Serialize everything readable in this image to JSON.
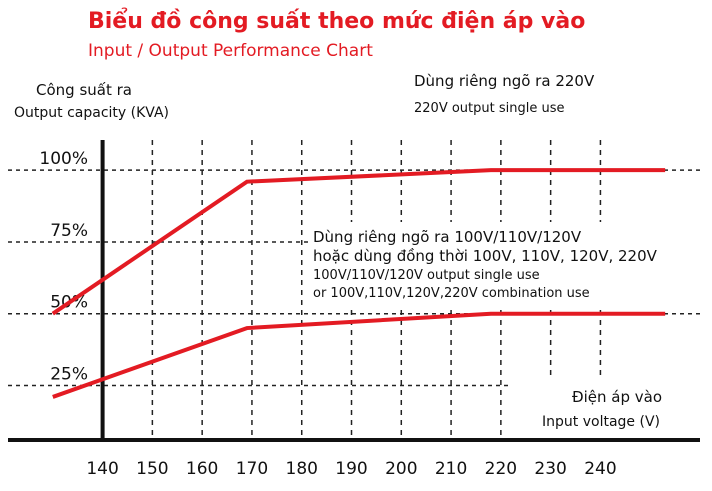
{
  "chart_data": {
    "type": "line",
    "title": "Biểu đồ công suất theo mức điện áp vào",
    "subtitle": "Input / Output Performance Chart",
    "y_label": [
      "Công suất ra",
      "Output capacity (KVA)"
    ],
    "x_label": [
      "Điện áp vào",
      "Input voltage (V)"
    ],
    "annotations": [
      [
        "Dùng riêng ngõ ra 220V",
        "220V output single use"
      ],
      [
        "Dùng riêng ngõ ra 100V/110V/120V",
        "hoặc dùng đồng thời 100V, 110V, 120V, 220V",
        "100V/110V/120V output single use",
        "or 100V,110V,120V,220V combination use"
      ]
    ],
    "x": [
      130,
      169,
      218,
      253
    ],
    "series": [
      {
        "color": "#e31b23",
        "values": [
          50,
          96,
          100,
          100
        ]
      },
      {
        "color": "#e31b23",
        "values": [
          21,
          45,
          50,
          50
        ]
      }
    ],
    "xlim": [
      121,
      260
    ],
    "ylim": [
      6,
      114
    ],
    "xticks": [
      140,
      150,
      160,
      170,
      180,
      190,
      200,
      210,
      220,
      230,
      240
    ],
    "yticks": [
      {
        "value": 25,
        "label": "25%"
      },
      {
        "value": 50,
        "label": "50%"
      },
      {
        "value": 75,
        "label": "75%"
      },
      {
        "value": 100,
        "label": "100%"
      }
    ],
    "grid": true
  }
}
